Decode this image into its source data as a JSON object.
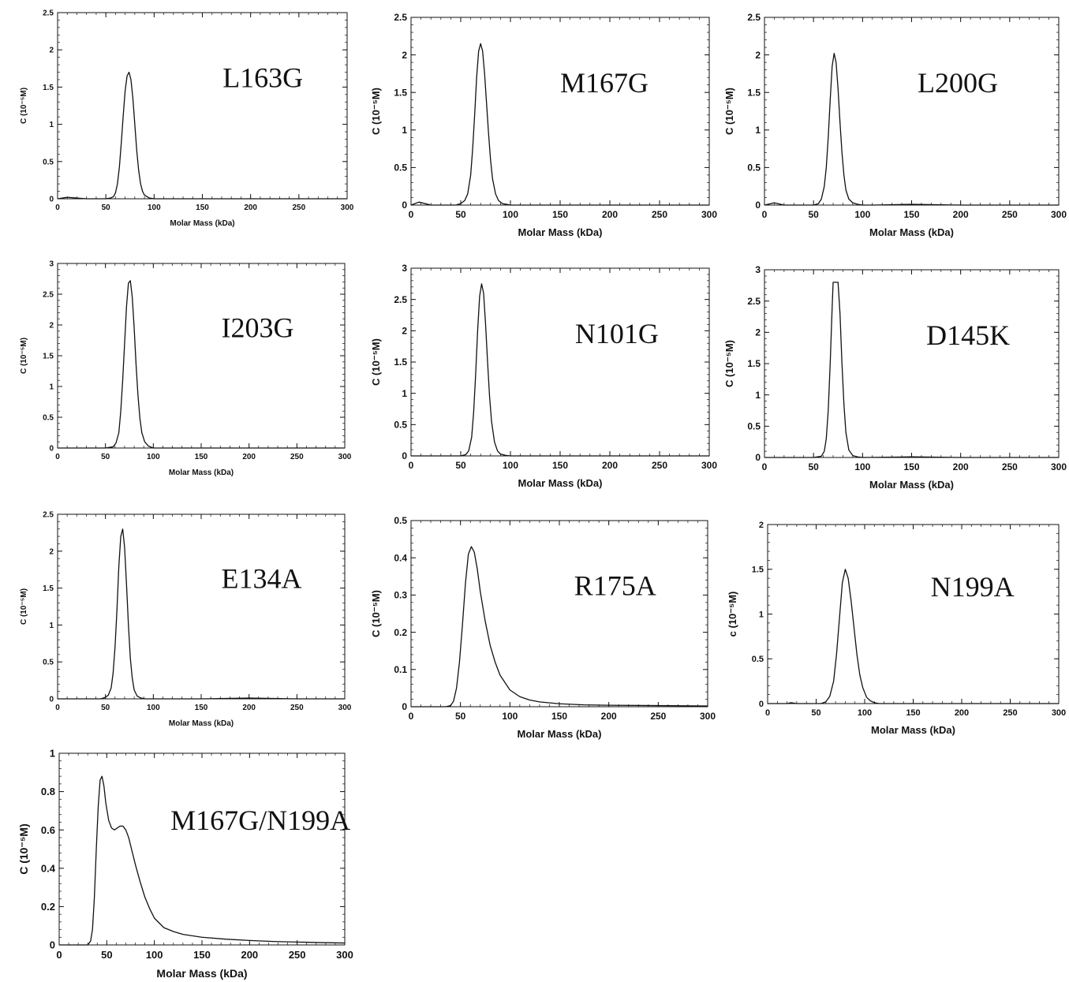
{
  "chart_data": [
    {
      "type": "line",
      "label": "L163G",
      "xlabel": "Molar Mass (kDa)",
      "ylabel": "C (10⁻⁵M)",
      "xlim": [
        0,
        300
      ],
      "ylim": [
        0,
        2.5
      ],
      "xticks": [
        0,
        50,
        100,
        150,
        200,
        250,
        300
      ],
      "yticks": [
        0,
        0.5,
        1,
        1.5,
        2,
        2.5
      ],
      "x": [
        0,
        10,
        30,
        50,
        55,
        58,
        60,
        62,
        64,
        66,
        68,
        70,
        72,
        74,
        76,
        78,
        80,
        82,
        84,
        86,
        88,
        90,
        95,
        100,
        110,
        150,
        200,
        250,
        300
      ],
      "y": [
        0,
        0.02,
        0,
        0,
        0.01,
        0.03,
        0.08,
        0.2,
        0.42,
        0.75,
        1.12,
        1.45,
        1.65,
        1.7,
        1.6,
        1.35,
        1.0,
        0.65,
        0.38,
        0.2,
        0.1,
        0.05,
        0.01,
        0,
        0,
        0,
        0,
        0,
        0
      ]
    },
    {
      "type": "line",
      "label": "M167G",
      "xlabel": "Molar Mass (kDa)",
      "ylabel": "C (10⁻⁵M)",
      "xlim": [
        0,
        300
      ],
      "ylim": [
        0,
        2.5
      ],
      "xticks": [
        0,
        50,
        100,
        150,
        200,
        250,
        300
      ],
      "yticks": [
        0,
        0.5,
        1,
        1.5,
        2,
        2.5
      ],
      "x": [
        0,
        8,
        20,
        45,
        50,
        54,
        57,
        60,
        62,
        64,
        66,
        68,
        70,
        72,
        74,
        76,
        78,
        80,
        82,
        85,
        88,
        92,
        96,
        100,
        110,
        150,
        200,
        250,
        300
      ],
      "y": [
        0,
        0.04,
        0,
        0,
        0.02,
        0.06,
        0.15,
        0.4,
        0.75,
        1.2,
        1.7,
        2.05,
        2.15,
        2.05,
        1.75,
        1.35,
        0.95,
        0.6,
        0.35,
        0.15,
        0.06,
        0.02,
        0.01,
        0,
        0,
        0,
        0,
        0,
        0
      ]
    },
    {
      "type": "line",
      "label": "L200G",
      "xlabel": "Molar Mass (kDa)",
      "ylabel": "C (10⁻⁵M)",
      "xlim": [
        0,
        300
      ],
      "ylim": [
        0,
        2.5
      ],
      "xticks": [
        0,
        50,
        100,
        150,
        200,
        250,
        300
      ],
      "yticks": [
        0,
        0.5,
        1,
        1.5,
        2,
        2.5
      ],
      "x": [
        0,
        10,
        20,
        50,
        55,
        58,
        61,
        63,
        65,
        67,
        69,
        71,
        73,
        75,
        77,
        79,
        81,
        83,
        86,
        90,
        95,
        100,
        110,
        150,
        200,
        250,
        300
      ],
      "y": [
        0,
        0.03,
        0,
        0,
        0.02,
        0.08,
        0.25,
        0.5,
        0.9,
        1.4,
        1.85,
        2.02,
        1.9,
        1.55,
        1.1,
        0.7,
        0.4,
        0.2,
        0.08,
        0.03,
        0.01,
        0,
        0,
        0.01,
        0,
        0,
        0
      ]
    },
    {
      "type": "line",
      "label": "I203G",
      "xlabel": "Molar Mass (kDa)",
      "ylabel": "C (10⁻⁵M)",
      "xlim": [
        0,
        300
      ],
      "ylim": [
        0,
        3
      ],
      "xticks": [
        0,
        50,
        100,
        150,
        200,
        250,
        300
      ],
      "yticks": [
        0,
        0.5,
        1,
        1.5,
        2,
        2.5,
        3
      ],
      "x": [
        0,
        50,
        58,
        61,
        64,
        66,
        68,
        70,
        72,
        74,
        76,
        78,
        80,
        82,
        84,
        86,
        88,
        91,
        95,
        100,
        110,
        150,
        200,
        250,
        300
      ],
      "y": [
        0,
        0,
        0.02,
        0.08,
        0.25,
        0.6,
        1.1,
        1.7,
        2.3,
        2.68,
        2.72,
        2.45,
        1.95,
        1.35,
        0.85,
        0.48,
        0.25,
        0.1,
        0.03,
        0,
        0,
        0,
        0,
        0,
        0
      ]
    },
    {
      "type": "line",
      "label": "N101G",
      "xlabel": "Molar Mass (kDa)",
      "ylabel": "C (10⁻⁵M)",
      "xlim": [
        0,
        300
      ],
      "ylim": [
        0,
        3
      ],
      "xticks": [
        0,
        50,
        100,
        150,
        200,
        250,
        300
      ],
      "yticks": [
        0,
        0.5,
        1,
        1.5,
        2,
        2.5,
        3
      ],
      "x": [
        0,
        50,
        55,
        58,
        61,
        63,
        65,
        67,
        69,
        71,
        73,
        75,
        77,
        79,
        81,
        84,
        87,
        90,
        95,
        100,
        150,
        200,
        250,
        300
      ],
      "y": [
        0,
        0,
        0.02,
        0.08,
        0.3,
        0.7,
        1.3,
        2.0,
        2.55,
        2.75,
        2.6,
        2.1,
        1.5,
        0.95,
        0.55,
        0.22,
        0.08,
        0.03,
        0.01,
        0,
        0,
        0,
        0,
        0
      ]
    },
    {
      "type": "line",
      "label": "D145K",
      "xlabel": "Molar Mass (kDa)",
      "ylabel": "C (10⁻⁵M)",
      "xlim": [
        0,
        300
      ],
      "ylim": [
        0,
        3
      ],
      "xticks": [
        0,
        50,
        100,
        150,
        200,
        250,
        300
      ],
      "yticks": [
        0,
        0.5,
        1,
        1.5,
        2,
        2.5,
        3
      ],
      "x": [
        0,
        50,
        58,
        61,
        63,
        65,
        67,
        69,
        70,
        72,
        74,
        75,
        77,
        79,
        81,
        83,
        86,
        90,
        95,
        100,
        150,
        200,
        250,
        300
      ],
      "y": [
        0,
        0,
        0.02,
        0.1,
        0.3,
        0.75,
        1.5,
        2.4,
        2.8,
        2.8,
        2.8,
        2.8,
        2.3,
        1.5,
        0.85,
        0.4,
        0.12,
        0.03,
        0.01,
        0,
        0.01,
        0,
        0,
        0
      ]
    },
    {
      "type": "line",
      "label": "E134A",
      "xlabel": "Molar Mass (kDa)",
      "ylabel": "C (10⁻⁵M)",
      "xlim": [
        0,
        300
      ],
      "ylim": [
        0,
        2.5
      ],
      "xticks": [
        0,
        50,
        100,
        150,
        200,
        250,
        300
      ],
      "yticks": [
        0,
        0.5,
        1,
        1.5,
        2,
        2.5
      ],
      "x": [
        0,
        45,
        50,
        53,
        56,
        58,
        60,
        62,
        64,
        66,
        68,
        70,
        72,
        74,
        76,
        78,
        80,
        83,
        87,
        92,
        100,
        150,
        200,
        250,
        300
      ],
      "y": [
        0,
        0,
        0.02,
        0.05,
        0.15,
        0.35,
        0.7,
        1.2,
        1.8,
        2.2,
        2.3,
        2.05,
        1.55,
        1.0,
        0.55,
        0.28,
        0.12,
        0.04,
        0.01,
        0,
        0,
        0,
        0.01,
        0,
        0
      ]
    },
    {
      "type": "line",
      "label": "R175A",
      "xlabel": "Molar Mass (kDa)",
      "ylabel": "C (10⁻⁵M)",
      "xlim": [
        0,
        300
      ],
      "ylim": [
        0,
        0.5
      ],
      "xticks": [
        0,
        50,
        100,
        150,
        200,
        250,
        300
      ],
      "yticks": [
        0,
        0.1,
        0.2,
        0.3,
        0.4,
        0.5
      ],
      "x": [
        0,
        35,
        40,
        43,
        46,
        49,
        52,
        55,
        58,
        61,
        64,
        67,
        70,
        75,
        80,
        85,
        90,
        100,
        110,
        120,
        130,
        150,
        175,
        200,
        250,
        300
      ],
      "y": [
        0,
        0,
        0.003,
        0.015,
        0.05,
        0.12,
        0.22,
        0.33,
        0.41,
        0.43,
        0.415,
        0.37,
        0.31,
        0.23,
        0.165,
        0.12,
        0.085,
        0.045,
        0.027,
        0.018,
        0.013,
        0.008,
        0.005,
        0.004,
        0.003,
        0.002
      ]
    },
    {
      "type": "line",
      "label": "N199A",
      "xlabel": "Molar Mass (kDa)",
      "ylabel": "c (10⁻⁵M)",
      "xlim": [
        0,
        300
      ],
      "ylim": [
        0,
        2
      ],
      "xticks": [
        0,
        50,
        100,
        150,
        200,
        250,
        300
      ],
      "yticks": [
        0,
        0.5,
        1,
        1.5,
        2
      ],
      "x": [
        0,
        20,
        24,
        30,
        55,
        60,
        64,
        68,
        71,
        74,
        77,
        80,
        83,
        86,
        89,
        92,
        95,
        98,
        102,
        106,
        110,
        115,
        120,
        150,
        200,
        250,
        300
      ],
      "y": [
        0,
        0,
        0.01,
        0,
        0,
        0.02,
        0.08,
        0.25,
        0.55,
        0.95,
        1.35,
        1.5,
        1.4,
        1.15,
        0.85,
        0.55,
        0.32,
        0.18,
        0.07,
        0.03,
        0.01,
        0,
        0,
        0,
        0,
        0,
        0
      ]
    },
    {
      "type": "line",
      "label": "M167G/N199A",
      "xlabel": "Molar Mass (kDa)",
      "ylabel": "C (10⁻⁵M)",
      "xlim": [
        0,
        300
      ],
      "ylim": [
        0,
        1
      ],
      "xticks": [
        0,
        50,
        100,
        150,
        200,
        250,
        300
      ],
      "yticks": [
        0,
        0.2,
        0.4,
        0.6,
        0.8,
        1
      ],
      "x": [
        0,
        30,
        33,
        35,
        37,
        39,
        41,
        43,
        45,
        47,
        49,
        52,
        55,
        58,
        61,
        64,
        67,
        70,
        73,
        76,
        80,
        85,
        90,
        95,
        100,
        110,
        120,
        130,
        150,
        175,
        200,
        225,
        250,
        275,
        300
      ],
      "y": [
        0,
        0,
        0.02,
        0.08,
        0.25,
        0.5,
        0.72,
        0.86,
        0.88,
        0.83,
        0.74,
        0.65,
        0.61,
        0.6,
        0.61,
        0.62,
        0.62,
        0.6,
        0.56,
        0.5,
        0.42,
        0.33,
        0.25,
        0.19,
        0.14,
        0.09,
        0.07,
        0.055,
        0.04,
        0.03,
        0.023,
        0.018,
        0.015,
        0.012,
        0.01
      ]
    }
  ]
}
